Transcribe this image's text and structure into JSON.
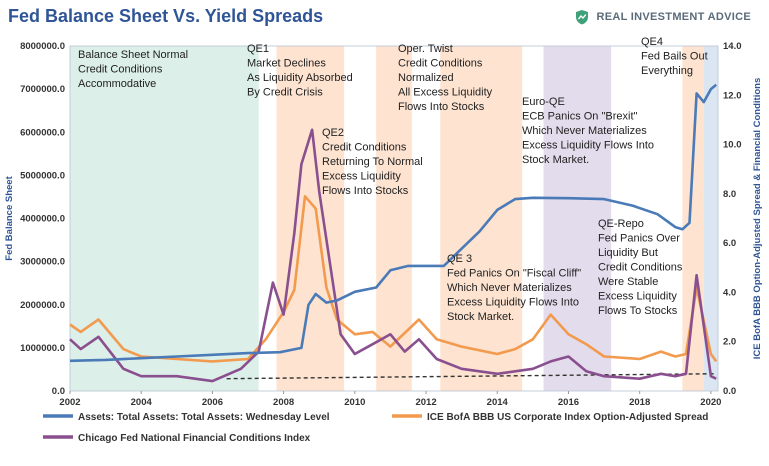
{
  "header": {
    "title": "Fed Balance Sheet Vs. Yield Spreads",
    "brand": "REAL INVESTMENT ADVICE"
  },
  "colors": {
    "balance": "#4a7ab8",
    "spread": "#f29a4e",
    "fci": "#8a4f8e",
    "band_green": "#dcefe9",
    "band_orange": "#fde3d0",
    "band_purple": "#e3dcec",
    "band_blue": "#dce6f2",
    "axis_text": "#2f5597"
  },
  "chart_data": {
    "type": "line",
    "x_range": [
      2002,
      2020.2
    ],
    "y_left": {
      "label": "Fed Balance Sheet",
      "range": [
        0,
        8000000
      ],
      "ticks": [
        "0.0",
        "1000000.0",
        "2000000.0",
        "3000000.0",
        "4000000.0",
        "5000000.0",
        "6000000.0",
        "7000000.0",
        "8000000.0"
      ],
      "tick_values": [
        0,
        1000000,
        2000000,
        3000000,
        4000000,
        5000000,
        6000000,
        7000000,
        8000000
      ]
    },
    "y_right": {
      "label": "ICE BofA BBB Option-Adjusted Spread & Financial Conditions",
      "range": [
        0,
        14
      ],
      "ticks": [
        "0.0",
        "2.0",
        "4.0",
        "6.0",
        "8.0",
        "10.0",
        "12.0",
        "14.0"
      ],
      "tick_values": [
        0,
        2,
        4,
        6,
        8,
        10,
        12,
        14
      ]
    },
    "x_ticks": [
      "2002",
      "2004",
      "2006",
      "2008",
      "2010",
      "2012",
      "2014",
      "2016",
      "2018",
      "2020"
    ],
    "x_tick_values": [
      2002,
      2004,
      2006,
      2008,
      2010,
      2012,
      2014,
      2016,
      2018,
      2020
    ],
    "bands": [
      {
        "name": "normal",
        "start": 2002.0,
        "end": 2007.3,
        "color": "green"
      },
      {
        "name": "qe1",
        "start": 2007.8,
        "end": 2009.7,
        "color": "orange"
      },
      {
        "name": "qe2",
        "start": 2010.6,
        "end": 2011.6,
        "color": "orange"
      },
      {
        "name": "twist-qe3",
        "start": 2012.4,
        "end": 2014.7,
        "color": "orange"
      },
      {
        "name": "euro-qe",
        "start": 2015.3,
        "end": 2017.2,
        "color": "purple"
      },
      {
        "name": "qe-repo",
        "start": 2019.2,
        "end": 2019.8,
        "color": "orange"
      },
      {
        "name": "qe4",
        "start": 2019.8,
        "end": 2020.2,
        "color": "blue"
      }
    ],
    "series": [
      {
        "name": "Assets: Total Assets: Total Assets: Wednesday Level",
        "axis": "left",
        "x": [
          2002,
          2003,
          2004,
          2005,
          2006,
          2007,
          2007.9,
          2008.5,
          2008.7,
          2008.9,
          2009.2,
          2009.5,
          2010,
          2010.6,
          2011,
          2011.5,
          2012,
          2012.5,
          2013,
          2013.5,
          2014,
          2014.5,
          2015,
          2016,
          2017,
          2017.8,
          2018.5,
          2019,
          2019.2,
          2019.4,
          2019.6,
          2019.8,
          2020,
          2020.15
        ],
        "values": [
          700000,
          720000,
          760000,
          800000,
          840000,
          880000,
          900000,
          1000000,
          2000000,
          2250000,
          2050000,
          2100000,
          2300000,
          2400000,
          2800000,
          2900000,
          2900000,
          2900000,
          3300000,
          3700000,
          4200000,
          4450000,
          4480000,
          4470000,
          4450000,
          4300000,
          4100000,
          3800000,
          3750000,
          3900000,
          6900000,
          6700000,
          7000000,
          7100000
        ]
      },
      {
        "name": "ICE BofA BBB US Corporate Index Option-Adjusted Spread",
        "axis": "right",
        "x": [
          2002,
          2002.3,
          2002.8,
          2003.5,
          2004,
          2005,
          2006,
          2007,
          2007.5,
          2008,
          2008.3,
          2008.6,
          2008.9,
          2009.2,
          2009.5,
          2010,
          2010.5,
          2011,
          2011.8,
          2012.3,
          2013,
          2014,
          2014.5,
          2015,
          2015.5,
          2016,
          2016.5,
          2017,
          2018,
          2018.6,
          2019,
          2019.3,
          2019.6,
          2020,
          2020.15
        ],
        "values": [
          2.7,
          2.4,
          2.9,
          1.7,
          1.4,
          1.3,
          1.2,
          1.3,
          2.1,
          3.2,
          4.1,
          7.9,
          7.4,
          4.2,
          2.9,
          2.3,
          2.4,
          1.8,
          2.9,
          2.1,
          1.8,
          1.5,
          1.7,
          2.1,
          3.1,
          2.3,
          1.9,
          1.4,
          1.3,
          1.6,
          1.4,
          1.5,
          4.2,
          1.5,
          1.2
        ]
      },
      {
        "name": "Chicago Fed National Financial Conditions Index",
        "axis": "right",
        "x": [
          2002,
          2002.3,
          2002.8,
          2003.5,
          2004,
          2005,
          2006,
          2006.8,
          2007.3,
          2007.7,
          2008,
          2008.3,
          2008.5,
          2008.8,
          2009,
          2009.3,
          2009.6,
          2010,
          2010.5,
          2011,
          2011.4,
          2011.8,
          2012.3,
          2013,
          2014,
          2015,
          2015.5,
          2016,
          2016.5,
          2017,
          2018,
          2018.6,
          2019,
          2019.3,
          2019.6,
          2020,
          2020.15
        ],
        "values": [
          2.1,
          1.7,
          2.2,
          0.9,
          0.6,
          0.6,
          0.4,
          0.9,
          1.6,
          4.4,
          3.1,
          6.4,
          9.2,
          10.6,
          8.1,
          5.2,
          2.3,
          1.5,
          1.9,
          2.3,
          1.6,
          2.1,
          1.3,
          0.9,
          0.7,
          0.9,
          1.2,
          1.4,
          0.8,
          0.6,
          0.5,
          0.7,
          0.6,
          0.7,
          4.7,
          0.6,
          0.5
        ]
      }
    ],
    "trendline": {
      "x": [
        2006.4,
        2020.15
      ],
      "values": [
        0.5,
        0.7
      ],
      "style": "dashed",
      "axis": "right"
    },
    "annotations": [
      {
        "lines": [
          "Balance Sheet Normal",
          "Credit Conditions",
          "Accommodative"
        ]
      },
      {
        "lines": [
          "QE1",
          "Market Declines",
          "As Liquidity Absorbed",
          "By Credit Crisis"
        ]
      },
      {
        "lines": [
          "QE2",
          "Credit Conditions",
          "Returning To Normal",
          "Excess Liquidity",
          "Flows Into Stocks"
        ]
      },
      {
        "lines": [
          "Oper. Twist",
          "Credit Conditions",
          "Normalized",
          "All Excess Liquidity",
          "Flows Into Stocks"
        ]
      },
      {
        "lines": [
          "QE 3",
          "Fed Panics On \"Fiscal Cliff\"",
          "Which Never Materializes",
          "Excess Liquidity Flows Into",
          "Stock Market."
        ]
      },
      {
        "lines": [
          "Euro-QE",
          "ECB Panics On \"Brexit\"",
          "Which Never Materializes",
          "Excess Liquidity Flows Into",
          "Stock Market."
        ]
      },
      {
        "lines": [
          "QE-Repo",
          "Fed Panics Over",
          "Liquidity But",
          "Credit Conditions",
          "Were Stable",
          "Excess Liquidity",
          "Flows To Stocks"
        ]
      },
      {
        "lines": [
          "QE4",
          "Fed Bails Out",
          "Everything"
        ]
      }
    ],
    "legend": [
      "Assets: Total Assets: Total Assets: Wednesday Level",
      "ICE BofA BBB US Corporate Index Option-Adjusted Spread",
      "Chicago Fed National Financial Conditions Index"
    ]
  }
}
